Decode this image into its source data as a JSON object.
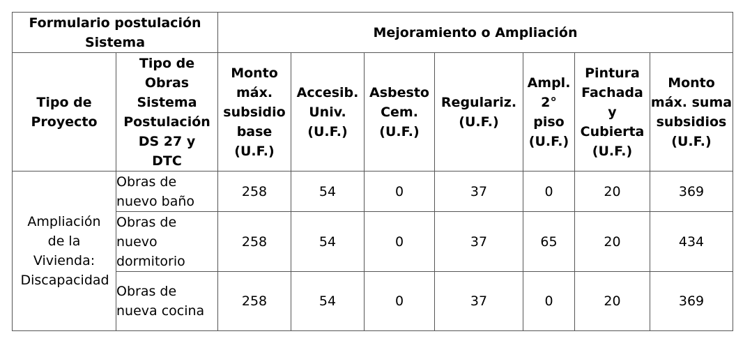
{
  "table": {
    "header": [
      [
        "Formulario postulación Sistema",
        "Mejoramiento o Ampliación"
      ],
      [
        "Tipo de Proyecto",
        "Tipo de Obras Sistema Postulación DS 27 y DTC",
        "Monto máx. subsidio base (U.F.)",
        "Accesib. Univ. (U.F.)",
        "Asbesto Cem. (U.F.)",
        "Regulariz. (U.F.)",
        "Ampl. 2° piso (U.F.)",
        "Pintura Fachada y Cubierta (U.F.)",
        "Monto máx. suma subsidios (U.F.)"
      ]
    ],
    "group": "Ampliación de la Vivienda: Discapacidad",
    "rows": [
      {
        "type": "Obras de nuevo baño",
        "values": [
          258,
          54,
          0,
          37,
          0,
          20,
          369
        ]
      },
      {
        "type": "Obras de nuevo dormitorio",
        "values": [
          258,
          54,
          0,
          37,
          65,
          20,
          434
        ]
      },
      {
        "type": "Obras de nueva cocina",
        "values": [
          258,
          54,
          0,
          37,
          0,
          20,
          369
        ]
      }
    ]
  }
}
